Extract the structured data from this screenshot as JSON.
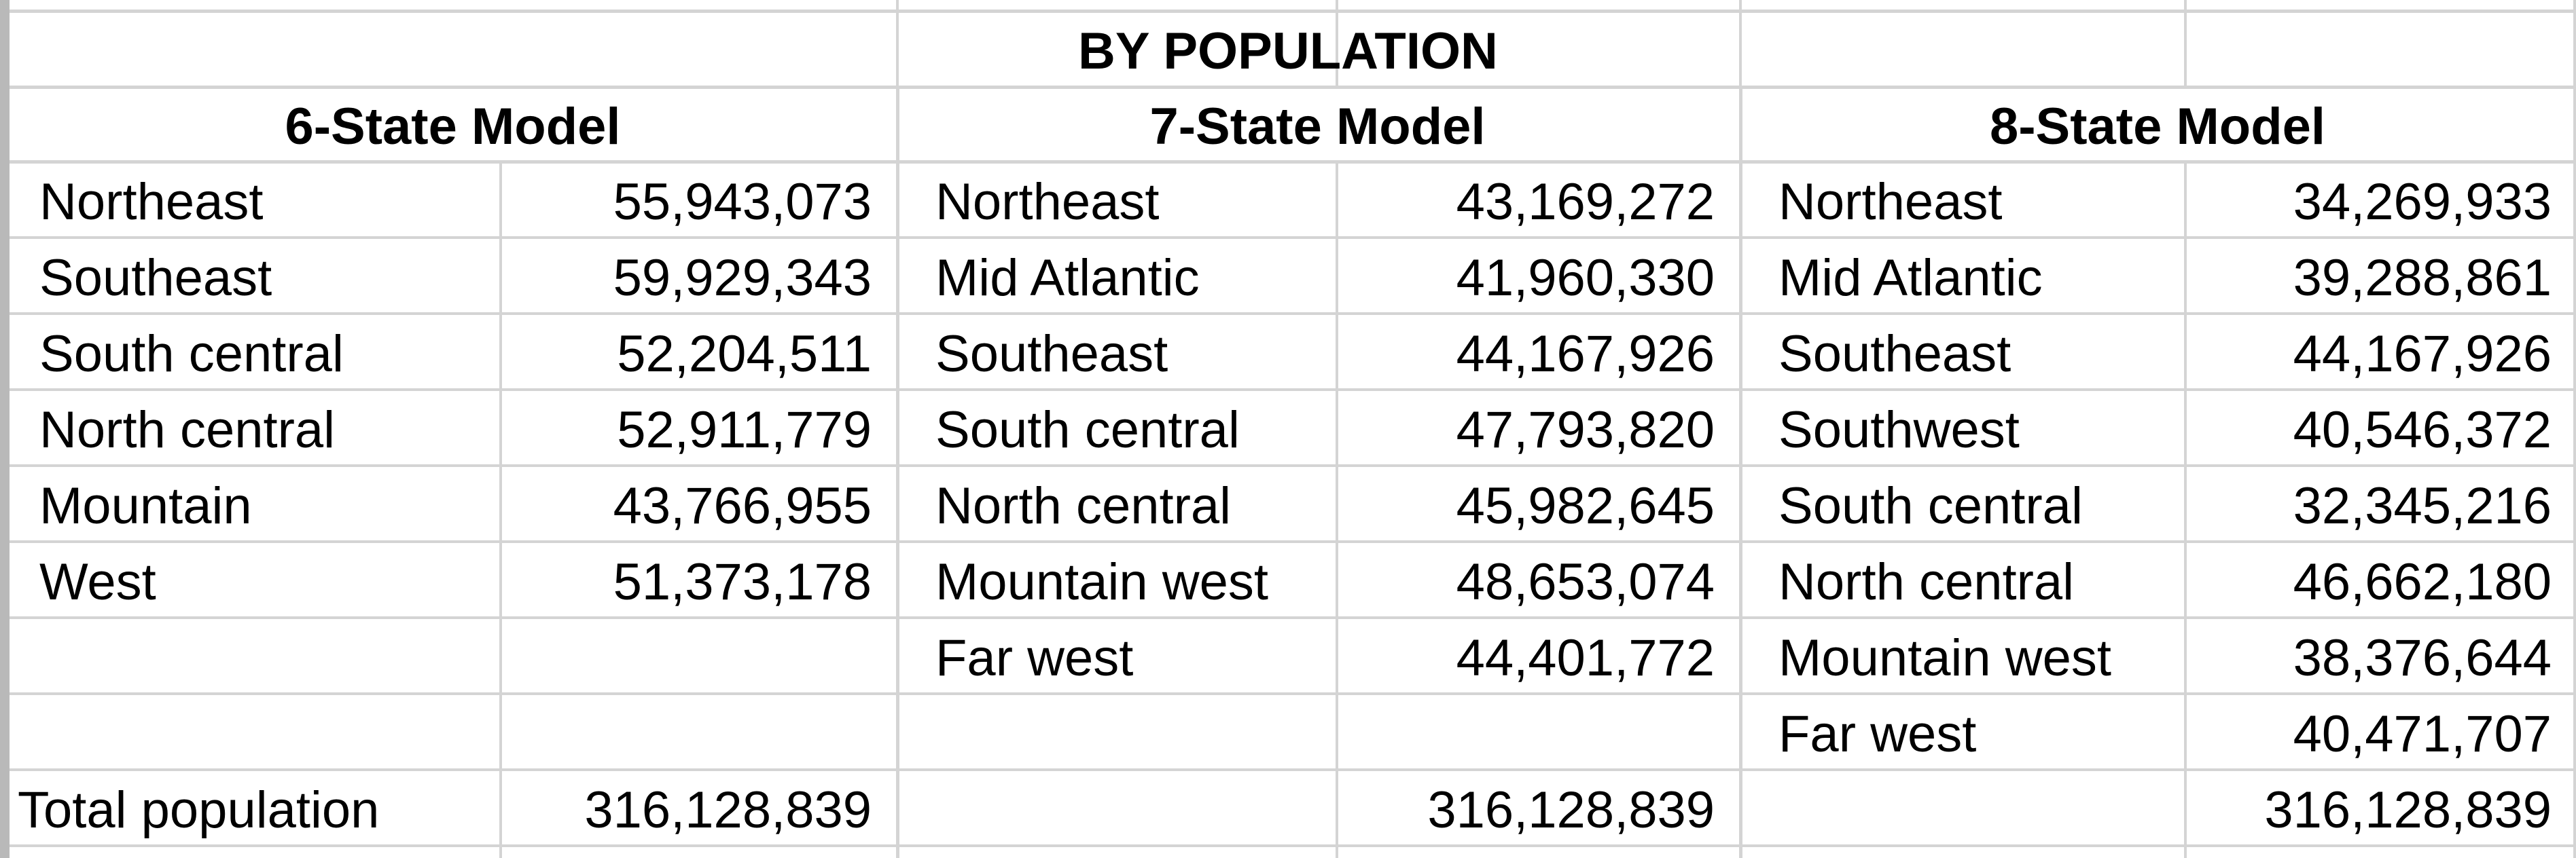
{
  "sheet": {
    "title": "BY POPULATION",
    "models": [
      {
        "name": "6-State Model",
        "rows": [
          {
            "region": "Northeast",
            "population": "55,943,073"
          },
          {
            "region": "Southeast",
            "population": "59,929,343"
          },
          {
            "region": "South central",
            "population": "52,204,511"
          },
          {
            "region": "North central",
            "population": "52,911,779"
          },
          {
            "region": "Mountain",
            "population": "43,766,955"
          },
          {
            "region": "West",
            "population": "51,373,178"
          }
        ],
        "total": "316,128,839"
      },
      {
        "name": "7-State Model",
        "rows": [
          {
            "region": "Northeast",
            "population": "43,169,272"
          },
          {
            "region": "Mid Atlantic",
            "population": "41,960,330"
          },
          {
            "region": "Southeast",
            "population": "44,167,926"
          },
          {
            "region": "South central",
            "population": "47,793,820"
          },
          {
            "region": "North central",
            "population": "45,982,645"
          },
          {
            "region": "Mountain west",
            "population": "48,653,074"
          },
          {
            "region": "Far west",
            "population": "44,401,772"
          }
        ],
        "total": "316,128,839"
      },
      {
        "name": "8-State Model",
        "rows": [
          {
            "region": "Northeast",
            "population": "34,269,933"
          },
          {
            "region": "Mid Atlantic",
            "population": "39,288,861"
          },
          {
            "region": "Southeast",
            "population": "44,167,926"
          },
          {
            "region": "Southwest",
            "population": "40,546,372"
          },
          {
            "region": "South central",
            "population": "32,345,216"
          },
          {
            "region": "North central",
            "population": "46,662,180"
          },
          {
            "region": "Mountain west",
            "population": "38,376,644"
          },
          {
            "region": "Far west",
            "population": "40,471,707"
          }
        ],
        "total": "316,128,839"
      }
    ],
    "total_label": "Total population"
  }
}
